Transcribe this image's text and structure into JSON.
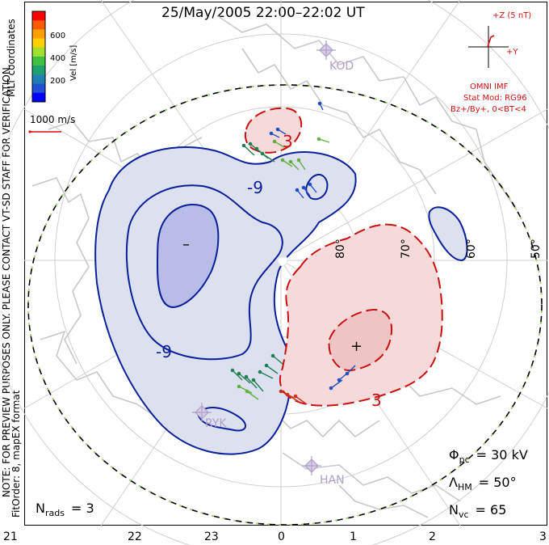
{
  "title": "25/May/2005  22:00–22:02  UT",
  "side_note_line1": "NOTE: FOR PREVIEW PURPOSES ONLY. PLEASE CONTACT VT-SD STAFF FOR VERIFICATION.",
  "side_note_line2": "FitOrder: 8,  mapEX format",
  "colorbar": {
    "title": "Vel [m/s]",
    "coords_label": "MLT coordinates",
    "ticks": [
      "600",
      "400",
      "200"
    ],
    "colors": [
      "#ff0000",
      "#ff5a00",
      "#ffa000",
      "#ffd000",
      "#a0e030",
      "#40c040",
      "#20a070",
      "#2080b0",
      "#2050d0",
      "#0000ff"
    ]
  },
  "ref_vector_label": "1000 m/s",
  "imf": {
    "z_label": "+Z (5 nT)",
    "y_label": "+Y",
    "omni_label": "OMNI IMF",
    "model_label": "Stat Mod: RG96",
    "condition_label": "Bz+/By+, 0<BT<4"
  },
  "latitude_labels": [
    "80°",
    "70°",
    "60°",
    "50°"
  ],
  "contour_labels": {
    "neg": "-9",
    "neg2": "-9",
    "pos": "3",
    "pos2": "3"
  },
  "station_labels": [
    "KOD",
    "RYK",
    "HAN"
  ],
  "extremes": {
    "min": "–",
    "max": "+"
  },
  "stats": {
    "nrads_label": "N",
    "nrads_sub": "rads",
    "nrads_value": "= 3",
    "phi_label": "Φ",
    "phi_sub": "pc",
    "phi_value": "= 30 kV",
    "lambda_label": "Λ",
    "lambda_sub": "HM",
    "lambda_value": "= 50°",
    "nvc_label": "N",
    "nvc_sub": "vc",
    "nvc_value": "= 65"
  },
  "mlt_axis": [
    "21",
    "22",
    "23",
    "0",
    "1",
    "2",
    "3"
  ],
  "colors": {
    "negative_cell_fill": "#dde0ee",
    "negative_core_fill": "#b8bde8",
    "negative_line": "#0a1f9a",
    "positive_cell_fill": "#f6dada",
    "positive_core_fill": "#efc4c4",
    "positive_line": "#c81010",
    "coast": "#c8c8c8",
    "grid": "#cfcfcf",
    "hmb": "#9fd86a",
    "imf": "#d01010",
    "station": "#b0a0c8"
  }
}
